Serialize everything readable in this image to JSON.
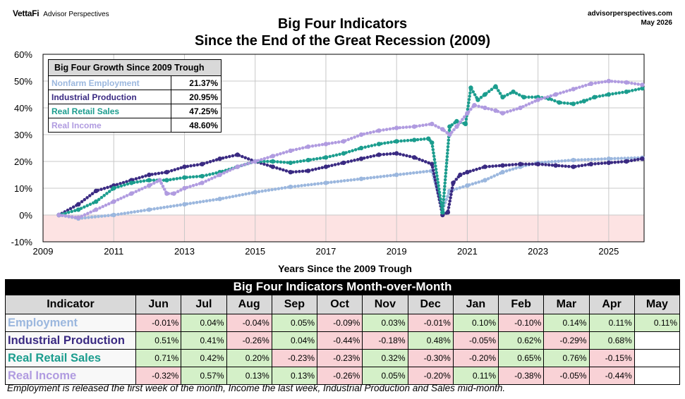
{
  "brand": {
    "logo": "VettaFi",
    "sub": "Advisor Perspectives"
  },
  "source": {
    "site": "advisorperspectives.com",
    "date": "May 2026"
  },
  "title": {
    "line1": "Big Four Indicators",
    "line2": "Since the End of the Great Recession (2009)"
  },
  "chart_data": {
    "type": "line",
    "title": "Big Four Indicators Since the End of the Great Recession (2009)",
    "xlabel": "Years Since the 2009 Trough",
    "ylabel": "",
    "xlim": [
      2009,
      2026
    ],
    "ylim": [
      -10,
      60
    ],
    "x_ticks": [
      "2009",
      "2011",
      "2013",
      "2015",
      "2017",
      "2019",
      "2021",
      "2023",
      "2025"
    ],
    "y_ticks": [
      "-10%",
      "0%",
      "10%",
      "20%",
      "30%",
      "40%",
      "50%",
      "60%"
    ],
    "grid": true,
    "negative_region_shaded": true,
    "series": [
      {
        "name": "Nonfarm Employment",
        "color": "#9bb7de",
        "x": [
          2009.45,
          2010.0,
          2011.0,
          2012.0,
          2013.0,
          2014.0,
          2015.0,
          2016.0,
          2017.0,
          2018.0,
          2019.0,
          2020.0,
          2020.3,
          2020.5,
          2021.0,
          2021.5,
          2022.0,
          2022.5,
          2023.0,
          2024.0,
          2025.0,
          2025.95
        ],
        "y": [
          0,
          -1.3,
          0,
          2,
          4,
          6,
          8.5,
          10.5,
          12,
          13.5,
          15,
          16.5,
          2,
          9,
          11,
          13,
          16,
          18,
          19.5,
          20.5,
          21,
          21.4
        ]
      },
      {
        "name": "Industrial Production",
        "color": "#3a2a82",
        "x": [
          2009.45,
          2010.0,
          2010.5,
          2011.0,
          2011.5,
          2012.0,
          2012.5,
          2013.0,
          2013.5,
          2014.0,
          2014.5,
          2015.0,
          2015.5,
          2016.0,
          2016.5,
          2017.0,
          2017.5,
          2018.0,
          2018.5,
          2019.0,
          2019.5,
          2020.0,
          2020.3,
          2020.45,
          2020.6,
          2020.8,
          2021.0,
          2021.5,
          2022.0,
          2022.5,
          2023.0,
          2023.5,
          2024.0,
          2024.5,
          2025.0,
          2025.5,
          2025.95
        ],
        "y": [
          0,
          4,
          9,
          11,
          13,
          15,
          16,
          18,
          19,
          21,
          22.5,
          20,
          18,
          16,
          16.5,
          18,
          19.5,
          21,
          22.5,
          23,
          21.5,
          19,
          0,
          1,
          12,
          15,
          16,
          18,
          18.5,
          19,
          19,
          18.5,
          18,
          19,
          19.5,
          20,
          21
        ]
      },
      {
        "name": "Real Retail Sales",
        "color": "#1b9d8e",
        "x": [
          2009.45,
          2010.0,
          2010.5,
          2011.0,
          2011.5,
          2012.0,
          2012.5,
          2013.0,
          2013.5,
          2014.0,
          2014.5,
          2015.0,
          2015.5,
          2016.0,
          2016.5,
          2017.0,
          2017.5,
          2018.0,
          2018.5,
          2019.0,
          2019.5,
          2019.9,
          2020.0,
          2020.3,
          2020.5,
          2020.7,
          2020.95,
          2021.1,
          2021.3,
          2021.5,
          2021.8,
          2022.0,
          2022.3,
          2022.6,
          2023.0,
          2023.3,
          2023.6,
          2024.0,
          2024.3,
          2024.6,
          2025.0,
          2025.5,
          2025.95
        ],
        "y": [
          0,
          2,
          5,
          10,
          12,
          13,
          13,
          14,
          14.5,
          16,
          18,
          20,
          20,
          19.5,
          20.5,
          21.5,
          23,
          25,
          26.5,
          27.5,
          28,
          28.5,
          27,
          1,
          33,
          35,
          34,
          47.5,
          43,
          45,
          48,
          44,
          46,
          44,
          44,
          43.5,
          42,
          41.5,
          42.5,
          44,
          45,
          46,
          47.3
        ]
      },
      {
        "name": "Real Income",
        "color": "#b09be0",
        "x": [
          2009.45,
          2010.0,
          2010.5,
          2011.0,
          2011.5,
          2012.0,
          2012.3,
          2012.5,
          2012.7,
          2013.0,
          2013.5,
          2014.0,
          2014.5,
          2015.0,
          2015.5,
          2016.0,
          2016.5,
          2017.0,
          2017.5,
          2018.0,
          2018.5,
          2019.0,
          2019.5,
          2020.0,
          2020.3,
          2020.5,
          2020.7,
          2021.0,
          2021.2,
          2021.5,
          2021.8,
          2022.0,
          2022.5,
          2023.0,
          2023.5,
          2024.0,
          2024.5,
          2025.0,
          2025.5,
          2025.95
        ],
        "y": [
          0,
          -1,
          2,
          5,
          8,
          11,
          13,
          8,
          8,
          10,
          12,
          15,
          18,
          20,
          22,
          24,
          25.5,
          26.5,
          27.5,
          30,
          31.5,
          32.5,
          33,
          34,
          32,
          30,
          33,
          38,
          41,
          40,
          39,
          38,
          40,
          43,
          45,
          47,
          49,
          50,
          49.5,
          48.6
        ]
      }
    ]
  },
  "inset": {
    "header": "Big Four Growth Since 2009 Trough",
    "rows": [
      {
        "label": "Nonfarm Employment",
        "value": "21.37%",
        "color": "#9bb7de"
      },
      {
        "label": "Industrial Production",
        "value": "20.95%",
        "color": "#3a2a82"
      },
      {
        "label": "Real Retail Sales",
        "value": "47.25%",
        "color": "#1b9d8e"
      },
      {
        "label": "Real Income",
        "value": "48.60%",
        "color": "#b09be0"
      }
    ]
  },
  "mom": {
    "title": "Big Four Indicators Month-over-Month",
    "header": [
      "Indicator",
      "Jun",
      "Jul",
      "Aug",
      "Sep",
      "Oct",
      "Nov",
      "Dec",
      "Jan",
      "Feb",
      "Mar",
      "Apr",
      "May"
    ],
    "rows": [
      {
        "name": "Employment",
        "color": "#9bb7de",
        "values": [
          "-0.01%",
          "0.04%",
          "-0.04%",
          "0.05%",
          "-0.09%",
          "0.03%",
          "-0.01%",
          "0.10%",
          "-0.10%",
          "0.14%",
          "0.11%",
          "0.11%"
        ]
      },
      {
        "name": "Industrial Production",
        "color": "#3a2a82",
        "values": [
          "0.51%",
          "0.41%",
          "-0.26%",
          "0.04%",
          "-0.44%",
          "-0.18%",
          "0.48%",
          "-0.05%",
          "0.62%",
          "-0.29%",
          "0.68%",
          ""
        ]
      },
      {
        "name": "Real Retail Sales",
        "color": "#1b9d8e",
        "values": [
          "0.71%",
          "0.42%",
          "0.20%",
          "-0.23%",
          "-0.23%",
          "0.32%",
          "-0.30%",
          "-0.20%",
          "0.65%",
          "0.76%",
          "-0.15%",
          ""
        ]
      },
      {
        "name": "Real Income",
        "color": "#b09be0",
        "values": [
          "-0.32%",
          "0.57%",
          "0.13%",
          "0.13%",
          "-0.26%",
          "0.05%",
          "-0.20%",
          "0.11%",
          "-0.38%",
          "-0.05%",
          "-0.44%",
          ""
        ]
      }
    ]
  },
  "footnote": "Employment is released the first week of the month, Income the last week, Industrial Production and Sales mid-month."
}
